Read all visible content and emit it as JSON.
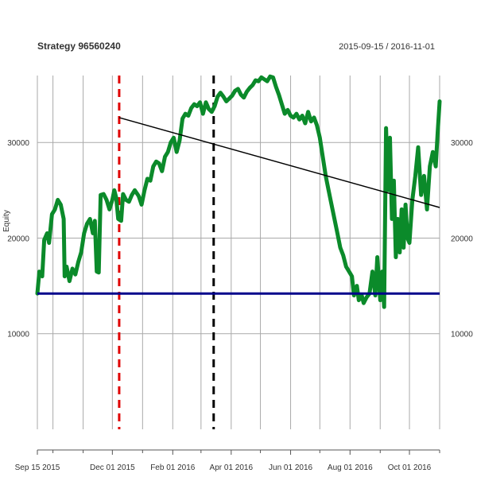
{
  "chart_data": {
    "type": "line",
    "title": "Strategy 96560240",
    "date_range": "2015-09-15 / 2016-11-01",
    "ylabel": "Equity",
    "xlim": [
      "2015-09-15",
      "2016-11-01"
    ],
    "ylim": [
      0,
      37000
    ],
    "grid": true,
    "y_ticks": [
      {
        "value": 10000,
        "label": "10000"
      },
      {
        "value": 20000,
        "label": "20000"
      },
      {
        "value": 30000,
        "label": "30000"
      }
    ],
    "x_ticks": [
      {
        "date": "2015-09-15",
        "label": "Sep 15 2015"
      },
      {
        "date": "2015-12-01",
        "label": "Dec 01 2015"
      },
      {
        "date": "2016-02-01",
        "label": "Feb 01 2016"
      },
      {
        "date": "2016-04-01",
        "label": "Apr 01 2016"
      },
      {
        "date": "2016-06-01",
        "label": "Jun 01 2016"
      },
      {
        "date": "2016-08-01",
        "label": "Aug 01 2016"
      },
      {
        "date": "2016-10-01",
        "label": "Oct 01 2016"
      }
    ],
    "minor_gridlines": [
      "2015-10-01",
      "2015-11-01",
      "2016-01-01",
      "2016-03-01",
      "2016-05-01",
      "2016-07-01",
      "2016-09-01",
      "2016-11-01"
    ],
    "series": [
      {
        "color": "#0b8a2a",
        "points": [
          [
            "2015-09-15",
            14200
          ],
          [
            "2015-09-17",
            16500
          ],
          [
            "2015-09-20",
            16000
          ],
          [
            "2015-09-22",
            19800
          ],
          [
            "2015-09-25",
            20500
          ],
          [
            "2015-09-27",
            19500
          ],
          [
            "2015-09-30",
            22500
          ],
          [
            "2015-10-03",
            23000
          ],
          [
            "2015-10-06",
            24000
          ],
          [
            "2015-10-09",
            23500
          ],
          [
            "2015-10-12",
            22000
          ],
          [
            "2015-10-13",
            16000
          ],
          [
            "2015-10-15",
            17000
          ],
          [
            "2015-10-18",
            15500
          ],
          [
            "2015-10-21",
            16800
          ],
          [
            "2015-10-24",
            16200
          ],
          [
            "2015-10-27",
            17500
          ],
          [
            "2015-10-30",
            18500
          ],
          [
            "2015-11-02",
            20500
          ],
          [
            "2015-11-05",
            21500
          ],
          [
            "2015-11-08",
            22000
          ],
          [
            "2015-11-11",
            20500
          ],
          [
            "2015-11-13",
            21800
          ],
          [
            "2015-11-15",
            16500
          ],
          [
            "2015-11-17",
            16400
          ],
          [
            "2015-11-19",
            24500
          ],
          [
            "2015-11-22",
            24600
          ],
          [
            "2015-11-25",
            24000
          ],
          [
            "2015-11-28",
            23000
          ],
          [
            "2015-12-01",
            24000
          ],
          [
            "2015-12-03",
            25000
          ],
          [
            "2015-12-05",
            24200
          ],
          [
            "2015-12-07",
            22000
          ],
          [
            "2015-12-10",
            21800
          ],
          [
            "2015-12-12",
            24600
          ],
          [
            "2015-12-15",
            24000
          ],
          [
            "2015-12-18",
            23800
          ],
          [
            "2015-12-21",
            24500
          ],
          [
            "2015-12-24",
            25000
          ],
          [
            "2015-12-28",
            24400
          ],
          [
            "2015-12-31",
            23500
          ],
          [
            "2016-01-03",
            25000
          ],
          [
            "2016-01-06",
            26200
          ],
          [
            "2016-01-09",
            26000
          ],
          [
            "2016-01-12",
            27500
          ],
          [
            "2016-01-15",
            28000
          ],
          [
            "2016-01-18",
            27800
          ],
          [
            "2016-01-21",
            27000
          ],
          [
            "2016-01-24",
            28500
          ],
          [
            "2016-01-27",
            29000
          ],
          [
            "2016-01-30",
            30000
          ],
          [
            "2016-02-02",
            30500
          ],
          [
            "2016-02-05",
            29000
          ],
          [
            "2016-02-08",
            30200
          ],
          [
            "2016-02-11",
            32500
          ],
          [
            "2016-02-14",
            33000
          ],
          [
            "2016-02-17",
            32800
          ],
          [
            "2016-02-20",
            33600
          ],
          [
            "2016-02-23",
            34000
          ],
          [
            "2016-02-26",
            33800
          ],
          [
            "2016-02-29",
            34200
          ],
          [
            "2016-03-03",
            33000
          ],
          [
            "2016-03-06",
            34200
          ],
          [
            "2016-03-09",
            33500
          ],
          [
            "2016-03-12",
            33200
          ],
          [
            "2016-03-15",
            33800
          ],
          [
            "2016-03-18",
            34800
          ],
          [
            "2016-03-21",
            35200
          ],
          [
            "2016-03-24",
            34800
          ],
          [
            "2016-03-27",
            34300
          ],
          [
            "2016-03-30",
            34600
          ],
          [
            "2016-04-02",
            34900
          ],
          [
            "2016-04-05",
            35400
          ],
          [
            "2016-04-08",
            35600
          ],
          [
            "2016-04-11",
            35000
          ],
          [
            "2016-04-14",
            34700
          ],
          [
            "2016-04-17",
            35300
          ],
          [
            "2016-04-20",
            35700
          ],
          [
            "2016-04-23",
            36000
          ],
          [
            "2016-04-26",
            36500
          ],
          [
            "2016-04-29",
            36400
          ],
          [
            "2016-05-02",
            36800
          ],
          [
            "2016-05-05",
            36600
          ],
          [
            "2016-05-08",
            36400
          ],
          [
            "2016-05-11",
            36900
          ],
          [
            "2016-05-14",
            36800
          ],
          [
            "2016-05-17",
            35800
          ],
          [
            "2016-05-20",
            35000
          ],
          [
            "2016-05-23",
            34000
          ],
          [
            "2016-05-26",
            33000
          ],
          [
            "2016-05-29",
            33400
          ],
          [
            "2016-06-01",
            32800
          ],
          [
            "2016-06-04",
            32600
          ],
          [
            "2016-06-07",
            33000
          ],
          [
            "2016-06-10",
            32400
          ],
          [
            "2016-06-13",
            32800
          ],
          [
            "2016-06-16",
            32000
          ],
          [
            "2016-06-19",
            33200
          ],
          [
            "2016-06-22",
            32200
          ],
          [
            "2016-06-25",
            32600
          ],
          [
            "2016-06-28",
            31800
          ],
          [
            "2016-07-01",
            30500
          ],
          [
            "2016-07-04",
            28500
          ],
          [
            "2016-07-07",
            26500
          ],
          [
            "2016-07-10",
            25000
          ],
          [
            "2016-07-13",
            23500
          ],
          [
            "2016-07-16",
            22000
          ],
          [
            "2016-07-19",
            20500
          ],
          [
            "2016-07-22",
            19000
          ],
          [
            "2016-07-25",
            18200
          ],
          [
            "2016-07-28",
            17000
          ],
          [
            "2016-07-31",
            16500
          ],
          [
            "2016-08-03",
            16000
          ],
          [
            "2016-08-05",
            14000
          ],
          [
            "2016-08-08",
            15000
          ],
          [
            "2016-08-10",
            13500
          ],
          [
            "2016-08-13",
            14000
          ],
          [
            "2016-08-15",
            13200
          ],
          [
            "2016-08-18",
            13800
          ],
          [
            "2016-08-21",
            14200
          ],
          [
            "2016-08-24",
            16500
          ],
          [
            "2016-08-27",
            14000
          ],
          [
            "2016-08-29",
            18000
          ],
          [
            "2016-09-01",
            13500
          ],
          [
            "2016-09-03",
            16500
          ],
          [
            "2016-09-05",
            12800
          ],
          [
            "2016-09-07",
            31500
          ],
          [
            "2016-09-09",
            25000
          ],
          [
            "2016-09-11",
            30500
          ],
          [
            "2016-09-13",
            22000
          ],
          [
            "2016-09-15",
            26000
          ],
          [
            "2016-09-17",
            18000
          ],
          [
            "2016-09-19",
            22000
          ],
          [
            "2016-09-21",
            18500
          ],
          [
            "2016-09-23",
            23000
          ],
          [
            "2016-09-25",
            19000
          ],
          [
            "2016-09-27",
            23500
          ],
          [
            "2016-09-29",
            20000
          ],
          [
            "2016-10-01",
            19500
          ],
          [
            "2016-10-04",
            24000
          ],
          [
            "2016-10-07",
            26500
          ],
          [
            "2016-10-10",
            29500
          ],
          [
            "2016-10-13",
            24500
          ],
          [
            "2016-10-16",
            26500
          ],
          [
            "2016-10-19",
            23000
          ],
          [
            "2016-10-22",
            27500
          ],
          [
            "2016-10-25",
            29000
          ],
          [
            "2016-10-28",
            27500
          ],
          [
            "2016-10-30",
            31000
          ],
          [
            "2016-11-01",
            34300
          ]
        ]
      }
    ],
    "reference_lines": [
      {
        "kind": "horizontal",
        "value": 14200,
        "color": "#00008b",
        "style": "solid"
      },
      {
        "kind": "vertical",
        "date": "2015-12-08",
        "color": "#e00000",
        "style": "dashed"
      },
      {
        "kind": "vertical",
        "date": "2016-03-14",
        "color": "#000000",
        "style": "dashed"
      },
      {
        "kind": "trend",
        "from": [
          "2015-12-08",
          32600
        ],
        "to": [
          "2016-11-01",
          23200
        ],
        "color": "#000000",
        "style": "solid"
      }
    ]
  }
}
